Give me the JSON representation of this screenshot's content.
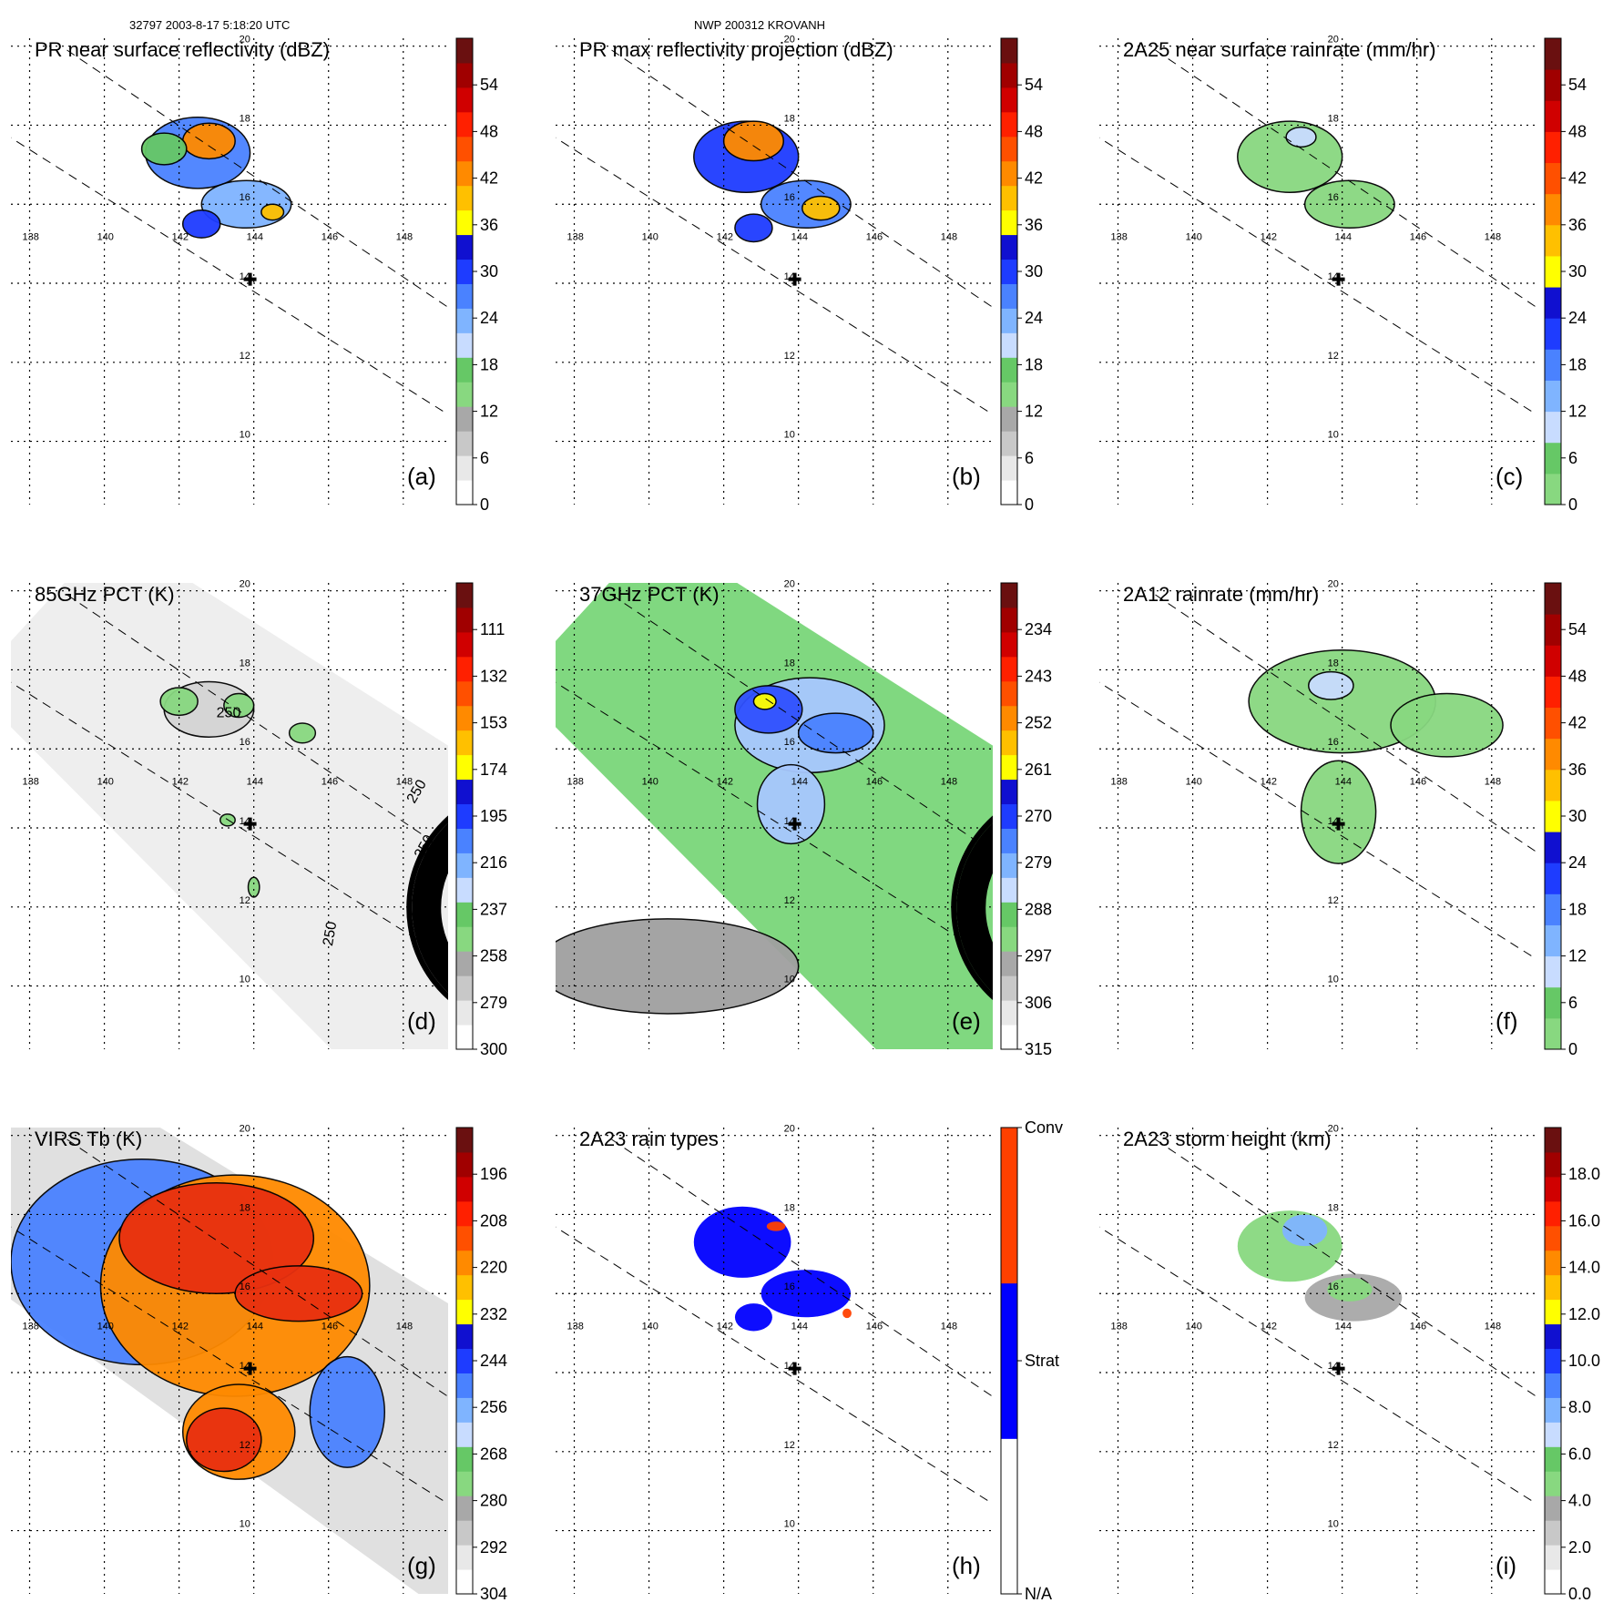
{
  "header": {
    "orbit_time": "32797 2003-8-17 5:18:20 UTC",
    "storm": "NWP 200312 KROVANH"
  },
  "storm_center": {
    "lon": 143.9,
    "lat": 14.1
  },
  "chart_data": [
    {
      "id": "a",
      "type": "heatmap",
      "panel_label": "(a)",
      "title": "PR near surface reflectivity (dBZ)",
      "lon_ticks": [
        138,
        140,
        142,
        144,
        146,
        148
      ],
      "lat_ticks": [
        10,
        12,
        14,
        16,
        18,
        20
      ],
      "xlim": [
        137.5,
        149.2
      ],
      "ylim": [
        8.4,
        20.2
      ],
      "colorbar": {
        "ticks": [
          "0",
          "6",
          "12",
          "18",
          "24",
          "30",
          "36",
          "42",
          "48",
          "54"
        ],
        "colors": [
          "#ffffff",
          "#e8e8e8",
          "#c8c8c8",
          "#a8a8a8",
          "#88d880",
          "#66c866",
          "#c8dcff",
          "#7fb4ff",
          "#4a82ff",
          "#1e3cff",
          "#1010d0",
          "#ffff00",
          "#ffc000",
          "#ff8a00",
          "#ff5000",
          "#ff2000",
          "#d00000",
          "#a00000",
          "#6a1010"
        ]
      },
      "swath": "pr",
      "regions": [
        {
          "lon": 142.5,
          "lat": 17.3,
          "rx": 1.4,
          "ry": 0.9,
          "color": "#4a82ff"
        },
        {
          "lon": 142.8,
          "lat": 17.6,
          "rx": 0.7,
          "ry": 0.45,
          "color": "#ff8a00"
        },
        {
          "lon": 143.8,
          "lat": 16.0,
          "rx": 1.2,
          "ry": 0.6,
          "color": "#7fb4ff"
        },
        {
          "lon": 142.6,
          "lat": 15.5,
          "rx": 0.5,
          "ry": 0.35,
          "color": "#1e3cff"
        },
        {
          "lon": 141.6,
          "lat": 17.4,
          "rx": 0.6,
          "ry": 0.4,
          "color": "#66c866"
        },
        {
          "lon": 144.5,
          "lat": 15.8,
          "rx": 0.3,
          "ry": 0.2,
          "color": "#ffc000"
        }
      ]
    },
    {
      "id": "b",
      "type": "heatmap",
      "panel_label": "(b)",
      "title": "PR max reflectivity projection (dBZ)",
      "lon_ticks": [
        138,
        140,
        142,
        144,
        146,
        148
      ],
      "lat_ticks": [
        10,
        12,
        14,
        16,
        18,
        20
      ],
      "xlim": [
        137.5,
        149.2
      ],
      "ylim": [
        8.4,
        20.2
      ],
      "colorbar": {
        "ticks": [
          "0",
          "6",
          "12",
          "18",
          "24",
          "30",
          "36",
          "42",
          "48",
          "54"
        ],
        "colors": [
          "#ffffff",
          "#e8e8e8",
          "#c8c8c8",
          "#a8a8a8",
          "#88d880",
          "#66c866",
          "#c8dcff",
          "#7fb4ff",
          "#4a82ff",
          "#1e3cff",
          "#1010d0",
          "#ffff00",
          "#ffc000",
          "#ff8a00",
          "#ff5000",
          "#ff2000",
          "#d00000",
          "#a00000",
          "#6a1010"
        ]
      },
      "swath": "pr",
      "regions": [
        {
          "lon": 142.6,
          "lat": 17.2,
          "rx": 1.4,
          "ry": 0.9,
          "color": "#1e3cff"
        },
        {
          "lon": 142.8,
          "lat": 17.6,
          "rx": 0.8,
          "ry": 0.5,
          "color": "#ff8a00"
        },
        {
          "lon": 144.2,
          "lat": 16.0,
          "rx": 1.2,
          "ry": 0.6,
          "color": "#4a82ff"
        },
        {
          "lon": 144.6,
          "lat": 15.9,
          "rx": 0.5,
          "ry": 0.3,
          "color": "#ffc000"
        },
        {
          "lon": 142.8,
          "lat": 15.4,
          "rx": 0.5,
          "ry": 0.35,
          "color": "#1e3cff"
        }
      ]
    },
    {
      "id": "c",
      "type": "heatmap",
      "panel_label": "(c)",
      "title": "2A25 near surface rainrate (mm/hr)",
      "lon_ticks": [
        138,
        140,
        142,
        144,
        146,
        148
      ],
      "lat_ticks": [
        10,
        12,
        14,
        16,
        18,
        20
      ],
      "xlim": [
        137.5,
        149.2
      ],
      "ylim": [
        8.4,
        20.2
      ],
      "colorbar": {
        "ticks": [
          "0",
          "6",
          "12",
          "18",
          "24",
          "30",
          "36",
          "42",
          "48",
          "54"
        ],
        "colors": [
          "#88d880",
          "#66c866",
          "#c8dcff",
          "#7fb4ff",
          "#4a82ff",
          "#1e3cff",
          "#1010d0",
          "#ffff00",
          "#ffc000",
          "#ff8a00",
          "#ff5000",
          "#ff2000",
          "#d00000",
          "#a00000",
          "#6a1010"
        ]
      },
      "swath": "pr",
      "regions": [
        {
          "lon": 142.6,
          "lat": 17.2,
          "rx": 1.4,
          "ry": 0.9,
          "color": "#88d880"
        },
        {
          "lon": 144.2,
          "lat": 16.0,
          "rx": 1.2,
          "ry": 0.6,
          "color": "#88d880"
        },
        {
          "lon": 142.9,
          "lat": 17.7,
          "rx": 0.4,
          "ry": 0.25,
          "color": "#c8dcff"
        }
      ]
    },
    {
      "id": "d",
      "type": "heatmap",
      "panel_label": "(d)",
      "title": "85GHz PCT (K)",
      "lon_ticks": [
        138,
        140,
        142,
        144,
        146,
        148
      ],
      "lat_ticks": [
        10,
        12,
        14,
        16,
        18,
        20
      ],
      "xlim": [
        137.5,
        149.2
      ],
      "ylim": [
        8.4,
        20.2
      ],
      "colorbar": {
        "ticks": [
          "300",
          "279",
          "258",
          "237",
          "216",
          "195",
          "174",
          "153",
          "132",
          "111"
        ],
        "colors": [
          "#ffffff",
          "#e8e8e8",
          "#c8c8c8",
          "#a8a8a8",
          "#88d880",
          "#66c866",
          "#c8dcff",
          "#7fb4ff",
          "#4a82ff",
          "#1e3cff",
          "#1010d0",
          "#ffff00",
          "#ffc000",
          "#ff8a00",
          "#ff5000",
          "#ff2000",
          "#d00000",
          "#a00000",
          "#6a1010"
        ]
      },
      "swath": "tmi",
      "swath_fill": "#eeeeee",
      "contour_labels": [
        "250",
        "250",
        "250",
        "250"
      ],
      "regions": [
        {
          "lon": 142.8,
          "lat": 17.0,
          "rx": 1.2,
          "ry": 0.7,
          "color": "#d4d4d4"
        },
        {
          "lon": 142.0,
          "lat": 17.2,
          "rx": 0.5,
          "ry": 0.35,
          "color": "#88d880"
        },
        {
          "lon": 143.6,
          "lat": 17.1,
          "rx": 0.4,
          "ry": 0.3,
          "color": "#88d880"
        },
        {
          "lon": 145.3,
          "lat": 16.4,
          "rx": 0.35,
          "ry": 0.25,
          "color": "#88d880"
        },
        {
          "lon": 143.3,
          "lat": 14.2,
          "rx": 0.2,
          "ry": 0.15,
          "color": "#88d880"
        },
        {
          "lon": 144.0,
          "lat": 12.5,
          "rx": 0.15,
          "ry": 0.25,
          "color": "#88d880"
        }
      ]
    },
    {
      "id": "e",
      "type": "heatmap",
      "panel_label": "(e)",
      "title": "37GHz PCT (K)",
      "lon_ticks": [
        138,
        140,
        142,
        144,
        146,
        148
      ],
      "lat_ticks": [
        10,
        12,
        14,
        16,
        18,
        20
      ],
      "xlim": [
        137.5,
        149.2
      ],
      "ylim": [
        8.4,
        20.2
      ],
      "colorbar": {
        "ticks": [
          "315",
          "306",
          "297",
          "288",
          "279",
          "270",
          "261",
          "252",
          "243",
          "234"
        ],
        "colors": [
          "#ffffff",
          "#e8e8e8",
          "#c8c8c8",
          "#a8a8a8",
          "#88d880",
          "#66c866",
          "#c8dcff",
          "#7fb4ff",
          "#4a82ff",
          "#1e3cff",
          "#1010d0",
          "#ffff00",
          "#ffc000",
          "#ff8a00",
          "#ff5000",
          "#ff2000",
          "#d00000",
          "#a00000",
          "#6a1010"
        ]
      },
      "swath": "tmi",
      "swath_fill": "#80d880",
      "regions": [
        {
          "lon": 140.5,
          "lat": 10.5,
          "rx": 3.5,
          "ry": 1.2,
          "color": "#a0a0a0"
        },
        {
          "lon": 144.3,
          "lat": 16.6,
          "rx": 2.0,
          "ry": 1.2,
          "color": "#a8c8ff"
        },
        {
          "lon": 143.8,
          "lat": 14.6,
          "rx": 0.9,
          "ry": 1.0,
          "color": "#a8c8ff"
        },
        {
          "lon": 143.2,
          "lat": 17.0,
          "rx": 0.9,
          "ry": 0.6,
          "color": "#3050ff"
        },
        {
          "lon": 145.0,
          "lat": 16.4,
          "rx": 1.0,
          "ry": 0.5,
          "color": "#4a82ff"
        },
        {
          "lon": 143.1,
          "lat": 17.2,
          "rx": 0.3,
          "ry": 0.2,
          "color": "#ffff00"
        }
      ]
    },
    {
      "id": "f",
      "type": "heatmap",
      "panel_label": "(f)",
      "title": "2A12 rainrate (mm/hr)",
      "lon_ticks": [
        138,
        140,
        142,
        144,
        146,
        148
      ],
      "lat_ticks": [
        10,
        12,
        14,
        16,
        18,
        20
      ],
      "xlim": [
        137.5,
        149.2
      ],
      "ylim": [
        8.4,
        20.2
      ],
      "colorbar": {
        "ticks": [
          "0",
          "6",
          "12",
          "18",
          "24",
          "30",
          "36",
          "42",
          "48",
          "54"
        ],
        "colors": [
          "#88d880",
          "#66c866",
          "#c8dcff",
          "#7fb4ff",
          "#4a82ff",
          "#1e3cff",
          "#1010d0",
          "#ffff00",
          "#ffc000",
          "#ff8a00",
          "#ff5000",
          "#ff2000",
          "#d00000",
          "#a00000",
          "#6a1010"
        ]
      },
      "swath": "none",
      "regions": [
        {
          "lon": 144.0,
          "lat": 17.2,
          "rx": 2.5,
          "ry": 1.3,
          "color": "#88d880"
        },
        {
          "lon": 143.9,
          "lat": 14.4,
          "rx": 1.0,
          "ry": 1.3,
          "color": "#88d880"
        },
        {
          "lon": 146.8,
          "lat": 16.6,
          "rx": 1.5,
          "ry": 0.8,
          "color": "#88d880"
        },
        {
          "lon": 143.7,
          "lat": 17.6,
          "rx": 0.6,
          "ry": 0.35,
          "color": "#c8dcff"
        }
      ]
    },
    {
      "id": "g",
      "type": "heatmap",
      "panel_label": "(g)",
      "title": "VIRS Tb (K)",
      "lon_ticks": [
        138,
        140,
        142,
        144,
        146,
        148
      ],
      "lat_ticks": [
        10,
        12,
        14,
        16,
        18,
        20
      ],
      "xlim": [
        137.5,
        149.2
      ],
      "ylim": [
        8.4,
        20.2
      ],
      "colorbar": {
        "ticks": [
          "304",
          "292",
          "280",
          "268",
          "256",
          "244",
          "232",
          "220",
          "208",
          "196"
        ],
        "colors": [
          "#ffffff",
          "#e8e8e8",
          "#c8c8c8",
          "#a8a8a8",
          "#88d880",
          "#66c866",
          "#c8dcff",
          "#7fb4ff",
          "#4a82ff",
          "#1e3cff",
          "#1010d0",
          "#ffff00",
          "#ffc000",
          "#ff8a00",
          "#ff5000",
          "#ff2000",
          "#d00000",
          "#a00000",
          "#6a1010"
        ]
      },
      "swath": "virs",
      "swath_fill": "#e0e0e0",
      "regions": [
        {
          "lon": 141.0,
          "lat": 16.8,
          "rx": 3.5,
          "ry": 2.6,
          "color": "#4a82ff"
        },
        {
          "lon": 143.5,
          "lat": 16.2,
          "rx": 3.6,
          "ry": 2.8,
          "color": "#ff8a00"
        },
        {
          "lon": 143.0,
          "lat": 17.4,
          "rx": 2.6,
          "ry": 1.4,
          "color": "#e83010"
        },
        {
          "lon": 145.2,
          "lat": 16.0,
          "rx": 1.7,
          "ry": 0.7,
          "color": "#e83010"
        },
        {
          "lon": 143.6,
          "lat": 12.5,
          "rx": 1.5,
          "ry": 1.2,
          "color": "#ff8a00"
        },
        {
          "lon": 143.2,
          "lat": 12.3,
          "rx": 1.0,
          "ry": 0.8,
          "color": "#e83010"
        },
        {
          "lon": 146.5,
          "lat": 13.0,
          "rx": 1.0,
          "ry": 1.4,
          "color": "#4a82ff"
        }
      ]
    },
    {
      "id": "h",
      "type": "heatmap",
      "panel_label": "(h)",
      "title": "2A23 rain types",
      "lon_ticks": [
        138,
        140,
        142,
        144,
        146,
        148
      ],
      "lat_ticks": [
        10,
        12,
        14,
        16,
        18,
        20
      ],
      "xlim": [
        137.5,
        149.2
      ],
      "ylim": [
        8.4,
        20.2
      ],
      "colorbar": {
        "ticks": [
          "N/A",
          "Strat",
          "Conv"
        ],
        "colors": [
          "#ffffff",
          "#0000ff",
          "#ff4000"
        ]
      },
      "swath": "pr",
      "regions": [
        {
          "lon": 142.5,
          "lat": 17.3,
          "rx": 1.3,
          "ry": 0.9,
          "color": "#0000ff"
        },
        {
          "lon": 144.2,
          "lat": 16.0,
          "rx": 1.2,
          "ry": 0.6,
          "color": "#0000ff"
        },
        {
          "lon": 142.8,
          "lat": 15.4,
          "rx": 0.5,
          "ry": 0.35,
          "color": "#0000ff"
        },
        {
          "lon": 143.4,
          "lat": 17.7,
          "rx": 0.25,
          "ry": 0.12,
          "color": "#ff4000"
        },
        {
          "lon": 145.3,
          "lat": 15.5,
          "rx": 0.12,
          "ry": 0.12,
          "color": "#ff4000"
        }
      ]
    },
    {
      "id": "i",
      "type": "heatmap",
      "panel_label": "(i)",
      "title": "2A23 storm height (km)",
      "lon_ticks": [
        138,
        140,
        142,
        144,
        146,
        148
      ],
      "lat_ticks": [
        10,
        12,
        14,
        16,
        18,
        20
      ],
      "xlim": [
        137.5,
        149.2
      ],
      "ylim": [
        8.4,
        20.2
      ],
      "colorbar": {
        "ticks": [
          "0.0",
          "2.0",
          "4.0",
          "6.0",
          "8.0",
          "10.0",
          "12.0",
          "14.0",
          "16.0",
          "18.0"
        ],
        "colors": [
          "#ffffff",
          "#e8e8e8",
          "#c8c8c8",
          "#a8a8a8",
          "#88d880",
          "#66c866",
          "#c8dcff",
          "#7fb4ff",
          "#4a82ff",
          "#1e3cff",
          "#1010d0",
          "#ffff00",
          "#ffc000",
          "#ff8a00",
          "#ff5000",
          "#ff2000",
          "#d00000",
          "#a00000",
          "#6a1010"
        ]
      },
      "swath": "pr",
      "regions": [
        {
          "lon": 142.6,
          "lat": 17.2,
          "rx": 1.4,
          "ry": 0.9,
          "color": "#88d880"
        },
        {
          "lon": 143.0,
          "lat": 17.6,
          "rx": 0.6,
          "ry": 0.4,
          "color": "#7fb4ff"
        },
        {
          "lon": 144.3,
          "lat": 15.9,
          "rx": 1.3,
          "ry": 0.6,
          "color": "#a8a8a8"
        },
        {
          "lon": 144.2,
          "lat": 16.1,
          "rx": 0.6,
          "ry": 0.3,
          "color": "#88d880"
        }
      ]
    }
  ]
}
